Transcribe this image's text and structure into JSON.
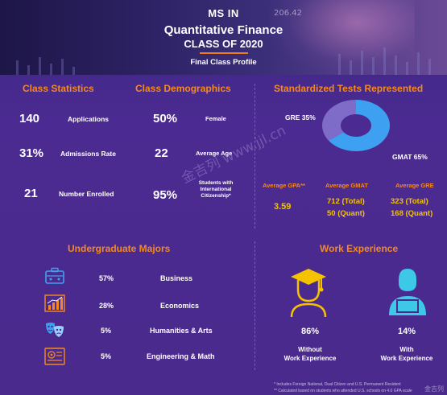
{
  "header": {
    "line1": "MS IN",
    "line2": "Quantitative Finance",
    "line3": "CLASS OF 2020",
    "line4": "Final Class Profile",
    "stock_text": "206.42"
  },
  "class_statistics": {
    "title": "Class Statistics",
    "items": [
      {
        "value": "140",
        "label": "Applications"
      },
      {
        "value": "31%",
        "label": "Admissions Rate"
      },
      {
        "value": "21",
        "label": "Number Enrolled"
      }
    ]
  },
  "class_demographics": {
    "title": "Class Demographics",
    "items": [
      {
        "value": "50%",
        "label": "Female"
      },
      {
        "value": "22",
        "label": "Average Age"
      },
      {
        "value": "95%",
        "label": "Students with International Citizenship*"
      }
    ]
  },
  "tests": {
    "title": "Standardized Tests Represented",
    "gre_label": "GRE 35%",
    "gmat_label": "GMAT 65%",
    "colors": {
      "gmat": "#3da0f0",
      "gre": "#7f6cc8"
    },
    "gpa_head": "Average GPA**",
    "gpa_value": "3.59",
    "gmat_head": "Average GMAT",
    "gmat_total": "712 (Total)",
    "gmat_quant": "50 (Quant)",
    "gre_head": "Average GRE",
    "gre_total": "323 (Total)",
    "gre_quant": "168 (Quant)"
  },
  "chart_data": {
    "type": "pie",
    "categories": [
      "GMAT",
      "GRE"
    ],
    "values": [
      65,
      35
    ],
    "title": "Standardized Tests Represented"
  },
  "majors": {
    "title": "Undergraduate Majors",
    "items": [
      {
        "pct": "57%",
        "name": "Business",
        "icon": "briefcase-icon"
      },
      {
        "pct": "28%",
        "name": "Economics",
        "icon": "growth-chart-icon"
      },
      {
        "pct": "5%",
        "name": "Humanities & Arts",
        "icon": "theater-masks-icon"
      },
      {
        "pct": "5%",
        "name": "Engineering & Math",
        "icon": "circuit-board-icon"
      }
    ]
  },
  "work": {
    "title": "Work Experience",
    "without_pct": "86%",
    "without_label1": "Without",
    "without_label2": "Work Experience",
    "with_pct": "14%",
    "with_label1": "With",
    "with_label2": "Work Experience"
  },
  "footnotes": {
    "note1": "* Includes Foreign National, Dual Citizen and U.S. Permanent Resident",
    "note2": "** Calculated based on students who attended U.S. schools on 4.0 GPA scale"
  },
  "watermark": {
    "text": "金吉列 www.jjl.cn",
    "corner": "金吉列"
  },
  "theme": {
    "accent": "#f5891f",
    "gold": "#f5c200",
    "background": "#4a2a8c"
  }
}
